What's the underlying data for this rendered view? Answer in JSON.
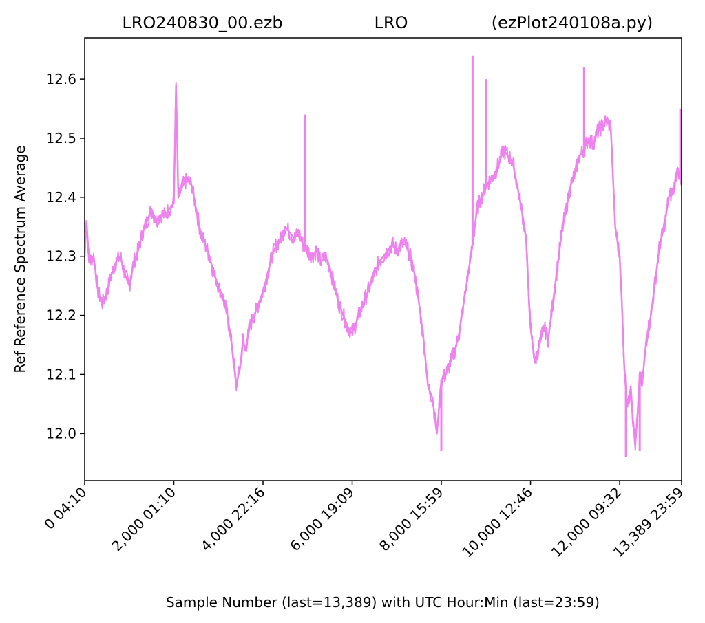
{
  "chart_data": {
    "type": "line",
    "title": {
      "left": "LRO240830_00.ezb",
      "center": "LRO",
      "right": "(ezPlot240108a.py)"
    },
    "xlabel": "Sample Number (last=13,389) with UTC Hour:Min (last=23:59)",
    "ylabel": "Ref Reference Spectrum Average",
    "xlim": [
      0,
      13389
    ],
    "ylim": [
      11.92,
      12.67
    ],
    "grid": false,
    "line_color": "#ee82ee",
    "x_ticks": [
      {
        "value": 0,
        "label": "0  04:10"
      },
      {
        "value": 2000,
        "label": "2,000  01:10"
      },
      {
        "value": 4000,
        "label": "4,000  22:16"
      },
      {
        "value": 6000,
        "label": "6,000  19:09"
      },
      {
        "value": 8000,
        "label": "8,000  15:59"
      },
      {
        "value": 10000,
        "label": "10,000  12:46"
      },
      {
        "value": 12000,
        "label": "12,000  09:32"
      },
      {
        "value": 13389,
        "label": "13,389  23:59"
      }
    ],
    "y_ticks": [
      {
        "value": 12.0,
        "label": "12.0"
      },
      {
        "value": 12.1,
        "label": "12.1"
      },
      {
        "value": 12.2,
        "label": "12.2"
      },
      {
        "value": 12.3,
        "label": "12.3"
      },
      {
        "value": 12.4,
        "label": "12.4"
      },
      {
        "value": 12.5,
        "label": "12.5"
      },
      {
        "value": 12.6,
        "label": "12.6"
      }
    ],
    "series": [
      {
        "x": [
          0,
          40,
          100,
          200,
          300,
          400,
          500,
          600,
          700,
          800,
          900,
          1000,
          1100,
          1200,
          1300,
          1400,
          1500,
          1600,
          1700,
          1800,
          1900,
          2000,
          2050,
          2100,
          2150,
          2200,
          2300,
          2400,
          2500,
          2600,
          2700,
          2800,
          2900,
          3000,
          3100,
          3200,
          3300,
          3400,
          3500,
          3550,
          3600,
          3700,
          3800,
          3900,
          4000,
          4100,
          4200,
          4300,
          4400,
          4500,
          4600,
          4700,
          4800,
          4900,
          5000,
          5100,
          5200,
          5300,
          5400,
          5500,
          5600,
          5700,
          5800,
          5900,
          6000,
          6100,
          6200,
          6300,
          6400,
          6500,
          6600,
          6700,
          6800,
          6900,
          7000,
          7100,
          7200,
          7300,
          7400,
          7500,
          7600,
          7650,
          7700,
          7800,
          7900,
          8000,
          8100,
          8200,
          8300,
          8400,
          8500,
          8600,
          8700,
          8800,
          8900,
          9000,
          9100,
          9200,
          9300,
          9400,
          9500,
          9600,
          9700,
          9800,
          9900,
          9950,
          10000,
          10100,
          10200,
          10300,
          10400,
          10500,
          10600,
          10700,
          10800,
          10900,
          11000,
          11100,
          11200,
          11300,
          11400,
          11500,
          11600,
          11700,
          11800,
          11900,
          12000,
          12050,
          12100,
          12150,
          12200,
          12250,
          12300,
          12350,
          12400,
          12450,
          12500,
          12600,
          12700,
          12800,
          12900,
          13000,
          13100,
          13200,
          13300,
          13389
        ],
        "y": [
          12.3,
          12.36,
          12.29,
          12.3,
          12.24,
          12.22,
          12.24,
          12.27,
          12.29,
          12.3,
          12.27,
          12.25,
          12.29,
          12.31,
          12.34,
          12.36,
          12.38,
          12.36,
          12.37,
          12.37,
          12.38,
          12.39,
          12.59,
          12.4,
          12.41,
          12.42,
          12.43,
          12.42,
          12.38,
          12.34,
          12.32,
          12.3,
          12.27,
          12.25,
          12.23,
          12.2,
          12.15,
          12.08,
          12.12,
          12.16,
          12.14,
          12.18,
          12.2,
          12.22,
          12.24,
          12.27,
          12.3,
          12.32,
          12.33,
          12.35,
          12.34,
          12.33,
          12.34,
          12.32,
          12.31,
          12.3,
          12.31,
          12.29,
          12.3,
          12.28,
          12.25,
          12.22,
          12.2,
          12.18,
          12.17,
          12.19,
          12.21,
          12.23,
          12.25,
          12.27,
          12.29,
          12.3,
          12.31,
          12.32,
          12.31,
          12.32,
          12.32,
          12.3,
          12.27,
          12.22,
          12.16,
          12.12,
          12.08,
          12.06,
          12.0,
          12.09,
          12.1,
          12.12,
          12.14,
          12.17,
          12.22,
          12.27,
          12.32,
          12.38,
          12.4,
          12.42,
          12.43,
          12.44,
          12.46,
          12.48,
          12.47,
          12.46,
          12.42,
          12.38,
          12.33,
          12.25,
          12.18,
          12.12,
          12.15,
          12.18,
          12.16,
          12.22,
          12.28,
          12.34,
          12.38,
          12.42,
          12.44,
          12.47,
          12.48,
          12.5,
          12.49,
          12.51,
          12.52,
          12.53,
          12.52,
          12.35,
          12.3,
          12.22,
          12.12,
          12.06,
          12.05,
          12.08,
          12.02,
          11.98,
          12.03,
          12.1,
          12.08,
          12.16,
          12.2,
          12.26,
          12.32,
          12.35,
          12.4,
          12.41,
          12.45,
          12.42
        ]
      }
    ],
    "spikes": [
      {
        "x": 2050,
        "y": 12.59
      },
      {
        "x": 4940,
        "y": 12.54
      },
      {
        "x": 8000,
        "y": 11.97
      },
      {
        "x": 8700,
        "y": 12.64
      },
      {
        "x": 9000,
        "y": 12.6
      },
      {
        "x": 11200,
        "y": 12.62
      },
      {
        "x": 12140,
        "y": 11.96
      },
      {
        "x": 12450,
        "y": 11.97
      },
      {
        "x": 13360,
        "y": 12.55
      }
    ]
  }
}
